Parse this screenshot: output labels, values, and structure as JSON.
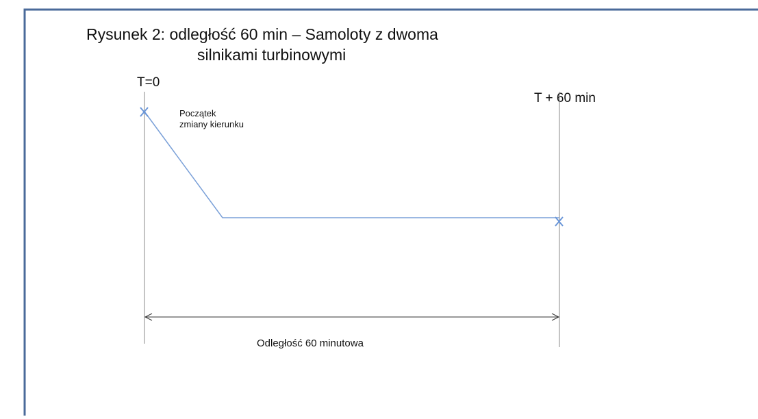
{
  "title_line1": "Rysunek 2: odległość 60 min – Samoloty z dwoma",
  "title_line2": "silnikami turbinowymi",
  "label_start": "T=0",
  "label_end": "T + 60 min",
  "annotation_line1": "Początek",
  "annotation_line2": "zmiany kierunku",
  "distance_label": "Odległość 60 minutowa"
}
